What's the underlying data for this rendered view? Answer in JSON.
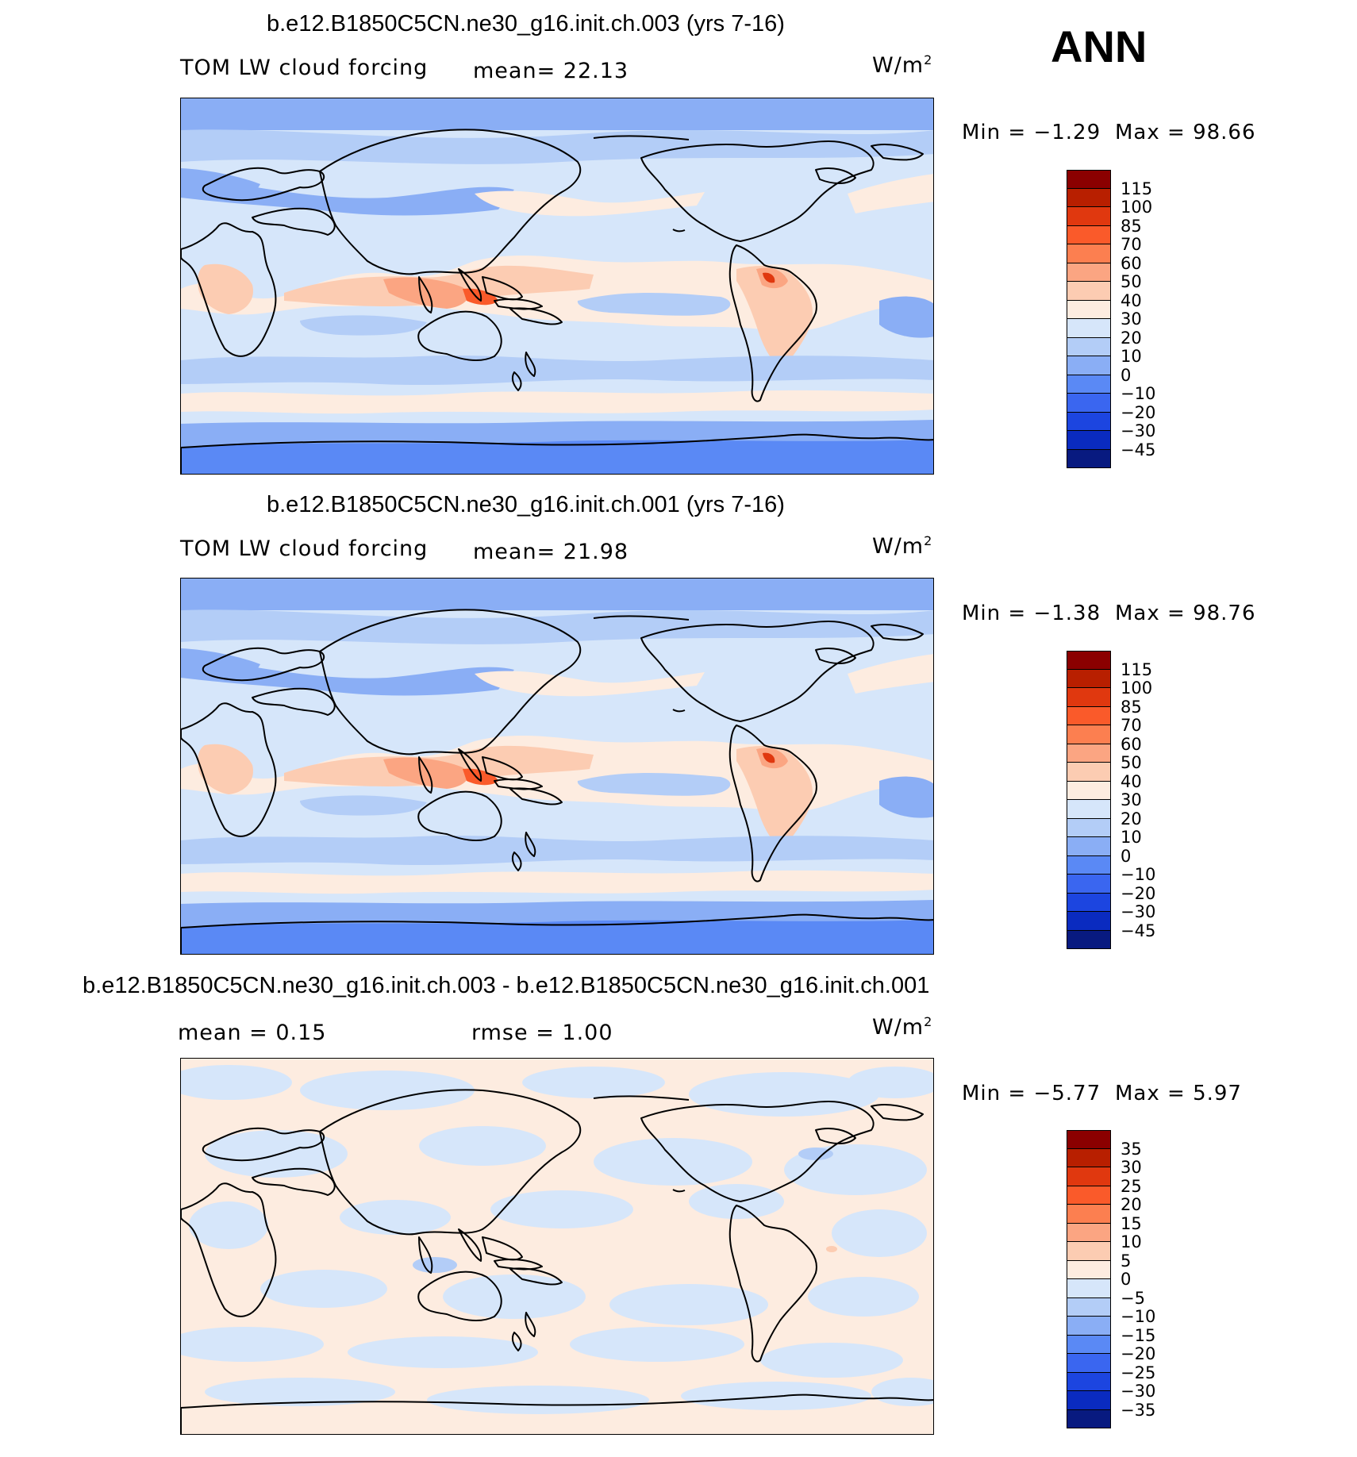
{
  "season_label": "ANN",
  "panels": [
    {
      "title": "b.e12.B1850C5CN.ne30_g16.init.ch.003 (yrs 7-16)",
      "variable": "TOM LW cloud forcing",
      "stat_text": "mean=  22.13",
      "units": "W/m",
      "units_sup": "2",
      "min_text": "Min =   −1.29",
      "max_text": "Max =   98.66",
      "colorbar": {
        "labels": [
          "115",
          "100",
          "85",
          "70",
          "60",
          "50",
          "40",
          "30",
          "20",
          "10",
          "0",
          "−10",
          "−20",
          "−30",
          "−45"
        ],
        "colors": [
          "#8b0000",
          "#b81f00",
          "#e0380f",
          "#fa5a2a",
          "#fc7f50",
          "#fba582",
          "#fcccb2",
          "#fdece0",
          "#d6e6fa",
          "#b3cdf7",
          "#8aaef5",
          "#5a89f5",
          "#3a66f0",
          "#1c45e0",
          "#0a2bc0",
          "#081a80"
        ]
      },
      "map": {
        "type": "contour-fill",
        "palette": "abs",
        "colors": {
          "bg": "#d6e6fa",
          "mid_lat": "#b3cdf7",
          "storm": "#8aaef5",
          "south": "#5a89f5",
          "warm": "#fdece0",
          "hot": "#fcccb2",
          "hotter": "#fba582",
          "peak": "#fa5a2a",
          "max": "#e0380f"
        }
      }
    },
    {
      "title": "b.e12.B1850C5CN.ne30_g16.init.ch.001 (yrs 7-16)",
      "variable": "TOM LW cloud forcing",
      "stat_text": "mean=  21.98",
      "units": "W/m",
      "units_sup": "2",
      "min_text": "Min =   −1.38",
      "max_text": "Max =   98.76",
      "colorbar": {
        "labels": [
          "115",
          "100",
          "85",
          "70",
          "60",
          "50",
          "40",
          "30",
          "20",
          "10",
          "0",
          "−10",
          "−20",
          "−30",
          "−45"
        ],
        "colors": [
          "#8b0000",
          "#b81f00",
          "#e0380f",
          "#fa5a2a",
          "#fc7f50",
          "#fba582",
          "#fcccb2",
          "#fdece0",
          "#d6e6fa",
          "#b3cdf7",
          "#8aaef5",
          "#5a89f5",
          "#3a66f0",
          "#1c45e0",
          "#0a2bc0",
          "#081a80"
        ]
      },
      "map": {
        "type": "contour-fill",
        "palette": "abs",
        "colors": {
          "bg": "#d6e6fa",
          "mid_lat": "#b3cdf7",
          "storm": "#8aaef5",
          "south": "#5a89f5",
          "warm": "#fdece0",
          "hot": "#fcccb2",
          "hotter": "#fba582",
          "peak": "#fa5a2a",
          "max": "#e0380f"
        }
      }
    },
    {
      "title": "b.e12.B1850C5CN.ne30_g16.init.ch.003 - b.e12.B1850C5CN.ne30_g16.init.ch.001",
      "variable": "",
      "stat_text": "mean =    0.15",
      "stat2_text": "rmse =    1.00",
      "units": "W/m",
      "units_sup": "2",
      "min_text": "Min =   −5.77",
      "max_text": "Max =    5.97",
      "colorbar": {
        "labels": [
          "35",
          "30",
          "25",
          "20",
          "15",
          "10",
          "5",
          "0",
          "−5",
          "−10",
          "−15",
          "−20",
          "−25",
          "−30",
          "−35"
        ],
        "colors": [
          "#8b0000",
          "#b81f00",
          "#e0380f",
          "#fa5a2a",
          "#fc7f50",
          "#fba582",
          "#fcccb2",
          "#fdece0",
          "#d6e6fa",
          "#b3cdf7",
          "#8aaef5",
          "#5a89f5",
          "#3a66f0",
          "#1c45e0",
          "#0a2bc0",
          "#081a80"
        ]
      },
      "map": {
        "type": "contour-fill",
        "palette": "diff",
        "colors": {
          "bg": "#fdece0",
          "neg": "#d6e6fa",
          "neg2": "#b3cdf7",
          "pos2": "#fcccb2"
        }
      }
    }
  ]
}
